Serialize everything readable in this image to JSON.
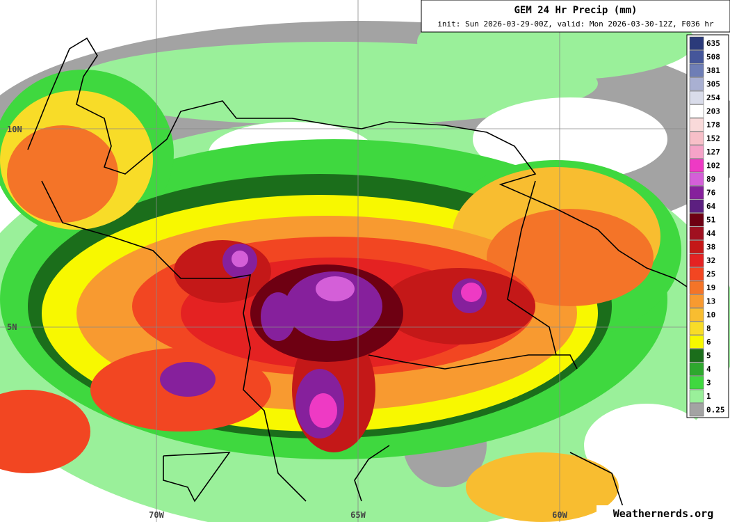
{
  "header": {
    "title": "GEM 24 Hr Precip (mm)",
    "subtitle": "init: Sun 2026-03-29-00Z, valid: Mon 2026-03-30-12Z, F036 hr"
  },
  "legend": {
    "entries": [
      {
        "value": 635,
        "color": "#2b3a7a"
      },
      {
        "value": 508,
        "color": "#45569a"
      },
      {
        "value": 381,
        "color": "#6e7eb6"
      },
      {
        "value": 305,
        "color": "#a9b0d2"
      },
      {
        "value": 254,
        "color": "#d9dcea"
      },
      {
        "value": 203,
        "color": "#ffffff"
      },
      {
        "value": 178,
        "color": "#f9dada"
      },
      {
        "value": 152,
        "color": "#f7bfc8"
      },
      {
        "value": 127,
        "color": "#f5a3c8"
      },
      {
        "value": 102,
        "color": "#ee3ac4"
      },
      {
        "value": 89,
        "color": "#d45fd8"
      },
      {
        "value": 76,
        "color": "#86209c"
      },
      {
        "value": 64,
        "color": "#5c1f80"
      },
      {
        "value": 51,
        "color": "#6e0012"
      },
      {
        "value": 44,
        "color": "#a01020"
      },
      {
        "value": 38,
        "color": "#c41818"
      },
      {
        "value": 32,
        "color": "#e42222"
      },
      {
        "value": 25,
        "color": "#f24622"
      },
      {
        "value": 19,
        "color": "#f47428"
      },
      {
        "value": 13,
        "color": "#f89a30"
      },
      {
        "value": 10,
        "color": "#f8bd30"
      },
      {
        "value": 8,
        "color": "#f8dc28"
      },
      {
        "value": 6,
        "color": "#f8f800"
      },
      {
        "value": 5,
        "color": "#1b6e1b"
      },
      {
        "value": 4,
        "color": "#2ea82e"
      },
      {
        "value": 3,
        "color": "#3fd83f"
      },
      {
        "value": 1,
        "color": "#9af09a"
      },
      {
        "value": 0.25,
        "color": "#a3a3a3"
      }
    ]
  },
  "map": {
    "lat_labels": [
      "10N",
      "5N"
    ],
    "lon_labels": [
      "70W",
      "65W",
      "60W"
    ]
  },
  "watermark": "Weathernerds.org"
}
